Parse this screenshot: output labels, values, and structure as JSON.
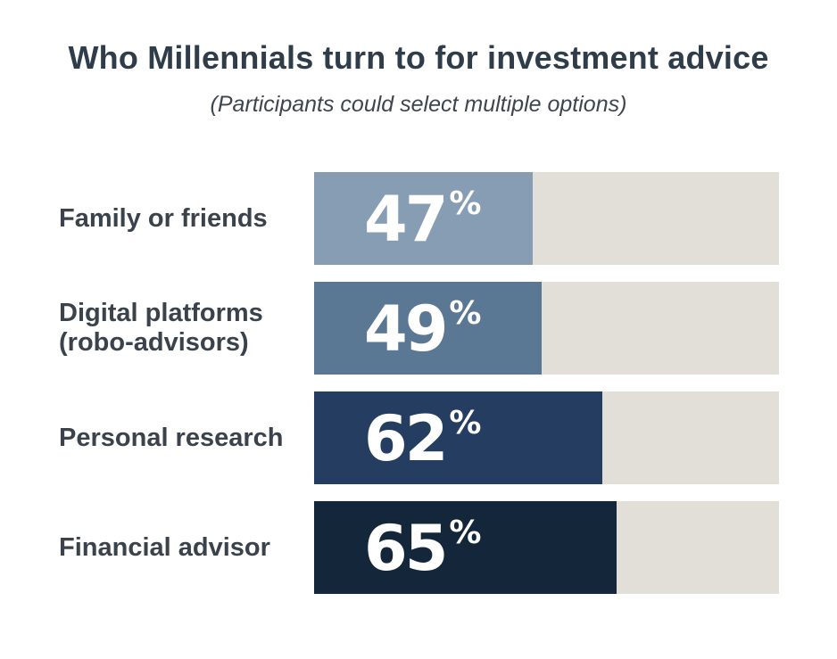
{
  "header": {
    "title": "Who Millennials turn to for investment advice",
    "subtitle": "(Participants could select multiple options)"
  },
  "colors": {
    "track": "#e2dfd8",
    "bars": [
      "#869db3",
      "#5a7794",
      "#243d61",
      "#14263a"
    ]
  },
  "chart_data": {
    "type": "bar",
    "orientation": "horizontal",
    "title": "Who Millennials turn to for investment advice",
    "subtitle": "(Participants could select multiple options)",
    "categories": [
      "Family or friends",
      "Digital platforms\n(robo-advisors)",
      "Personal research",
      "Financial advisor"
    ],
    "values": [
      47,
      49,
      62,
      65
    ],
    "value_labels": [
      "47",
      "49",
      "62",
      "65"
    ],
    "unit": "%",
    "xlim": [
      0,
      100
    ],
    "grid": false,
    "legend": "none"
  }
}
